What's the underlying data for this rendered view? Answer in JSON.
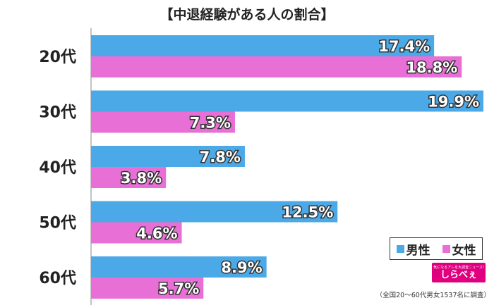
{
  "chart_data": {
    "type": "bar",
    "orientation": "horizontal",
    "title": "【中退経験がある人の割合】",
    "categories": [
      "20代",
      "30代",
      "40代",
      "50代",
      "60代"
    ],
    "series": [
      {
        "name": "男性",
        "color": "#4aa9e6",
        "values": [
          17.4,
          19.9,
          7.8,
          12.5,
          8.9
        ],
        "labels": [
          "17.4%",
          "19.9%",
          "7.8%",
          "12.5%",
          "8.9%"
        ]
      },
      {
        "name": "女性",
        "color": "#e86fd6",
        "values": [
          18.8,
          7.3,
          3.8,
          4.6,
          5.7
        ],
        "labels": [
          "18.8%",
          "7.3%",
          "3.8%",
          "4.6%",
          "5.7%"
        ]
      }
    ],
    "xlim": [
      0,
      20
    ],
    "legend_position": "bottom-right",
    "grid": false
  },
  "legend": {
    "male": "男性",
    "female": "女性"
  },
  "logo": {
    "tagline": "気になるアレを大調査ニュース!",
    "name": "しらべぇ"
  },
  "footnote": "（全国20〜60代男女1537名に調査）"
}
